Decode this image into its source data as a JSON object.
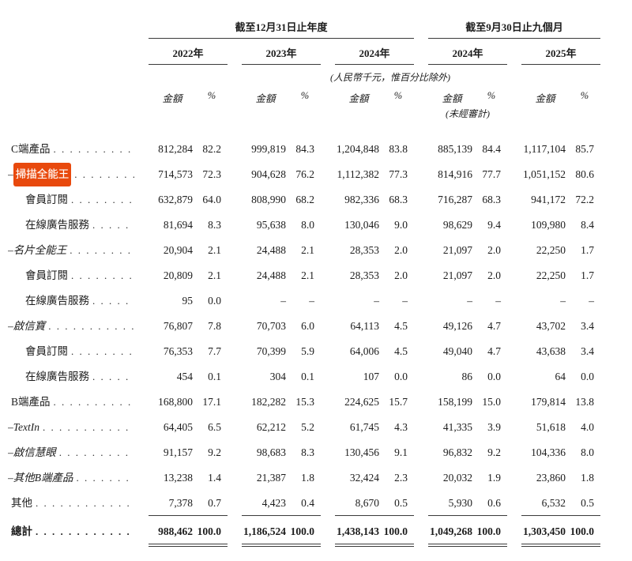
{
  "accent": {
    "highlight_color": "#e8490d"
  },
  "header": {
    "group_annual": "截至12月31日止年度",
    "group_nine_month": "截至9月30日止九個月",
    "years": [
      "2022年",
      "2023年",
      "2024年",
      "2024年",
      "2025年"
    ],
    "unit_note": "(人民幣千元，惟百分比除外)",
    "amount_label": "金額",
    "pct_label": "%",
    "unaudited": "(未經審計)"
  },
  "rows": [
    {
      "prefix": "",
      "label": "C端產品",
      "indent": "ind-0",
      "italic": false,
      "highlight": false,
      "style": "",
      "values": [
        "812,284",
        "82.2",
        "999,819",
        "84.3",
        "1,204,848",
        "83.8",
        "885,139",
        "84.4",
        "1,117,104",
        "85.7"
      ]
    },
    {
      "prefix": "–",
      "label": "掃描全能王",
      "indent": "ind-dash",
      "italic": false,
      "highlight": true,
      "style": "",
      "values": [
        "714,573",
        "72.3",
        "904,628",
        "76.2",
        "1,112,382",
        "77.3",
        "814,916",
        "77.7",
        "1,051,152",
        "80.6"
      ]
    },
    {
      "prefix": "",
      "label": "會員訂閱",
      "indent": "ind-sub",
      "italic": false,
      "highlight": false,
      "style": "",
      "values": [
        "632,879",
        "64.0",
        "808,990",
        "68.2",
        "982,336",
        "68.3",
        "716,287",
        "68.3",
        "941,172",
        "72.2"
      ]
    },
    {
      "prefix": "",
      "label": "在線廣告服務",
      "indent": "ind-sub",
      "italic": false,
      "highlight": false,
      "style": "",
      "values": [
        "81,694",
        "8.3",
        "95,638",
        "8.0",
        "130,046",
        "9.0",
        "98,629",
        "9.4",
        "109,980",
        "8.4"
      ]
    },
    {
      "prefix": "–",
      "label": "名片全能王",
      "indent": "ind-dash",
      "italic": true,
      "highlight": false,
      "style": "",
      "values": [
        "20,904",
        "2.1",
        "24,488",
        "2.1",
        "28,353",
        "2.0",
        "21,097",
        "2.0",
        "22,250",
        "1.7"
      ]
    },
    {
      "prefix": "",
      "label": "會員訂閱",
      "indent": "ind-sub",
      "italic": false,
      "highlight": false,
      "style": "",
      "values": [
        "20,809",
        "2.1",
        "24,488",
        "2.1",
        "28,353",
        "2.0",
        "21,097",
        "2.0",
        "22,250",
        "1.7"
      ]
    },
    {
      "prefix": "",
      "label": "在線廣告服務",
      "indent": "ind-sub",
      "italic": false,
      "highlight": false,
      "style": "",
      "values": [
        "95",
        "0.0",
        "–",
        "–",
        "–",
        "–",
        "–",
        "–",
        "–",
        "–"
      ]
    },
    {
      "prefix": "–",
      "label": "啟信寶",
      "indent": "ind-dash",
      "italic": true,
      "highlight": false,
      "style": "",
      "values": [
        "76,807",
        "7.8",
        "70,703",
        "6.0",
        "64,113",
        "4.5",
        "49,126",
        "4.7",
        "43,702",
        "3.4"
      ]
    },
    {
      "prefix": "",
      "label": "會員訂閱",
      "indent": "ind-sub",
      "italic": false,
      "highlight": false,
      "style": "",
      "values": [
        "76,353",
        "7.7",
        "70,399",
        "5.9",
        "64,006",
        "4.5",
        "49,040",
        "4.7",
        "43,638",
        "3.4"
      ]
    },
    {
      "prefix": "",
      "label": "在線廣告服務",
      "indent": "ind-sub",
      "italic": false,
      "highlight": false,
      "style": "",
      "values": [
        "454",
        "0.1",
        "304",
        "0.1",
        "107",
        "0.0",
        "86",
        "0.0",
        "64",
        "0.0"
      ]
    },
    {
      "prefix": "",
      "label": "B端產品",
      "indent": "ind-0",
      "italic": false,
      "highlight": false,
      "style": "",
      "values": [
        "168,800",
        "17.1",
        "182,282",
        "15.3",
        "224,625",
        "15.7",
        "158,199",
        "15.0",
        "179,814",
        "13.8"
      ]
    },
    {
      "prefix": "–",
      "label": "TextIn",
      "indent": "ind-dash",
      "italic": true,
      "highlight": false,
      "style": "",
      "values": [
        "64,405",
        "6.5",
        "62,212",
        "5.2",
        "61,745",
        "4.3",
        "41,335",
        "3.9",
        "51,618",
        "4.0"
      ]
    },
    {
      "prefix": "–",
      "label": "啟信慧眼",
      "indent": "ind-dash",
      "italic": true,
      "highlight": false,
      "style": "",
      "values": [
        "91,157",
        "9.2",
        "98,683",
        "8.3",
        "130,456",
        "9.1",
        "96,832",
        "9.2",
        "104,336",
        "8.0"
      ]
    },
    {
      "prefix": "–",
      "label": "其他B端產品",
      "indent": "ind-dash",
      "italic": true,
      "highlight": false,
      "style": "",
      "values": [
        "13,238",
        "1.4",
        "21,387",
        "1.8",
        "32,424",
        "2.3",
        "20,032",
        "1.9",
        "23,860",
        "1.8"
      ]
    },
    {
      "prefix": "",
      "label": "其他",
      "indent": "ind-0",
      "italic": false,
      "highlight": false,
      "style": "underline",
      "values": [
        "7,378",
        "0.7",
        "4,423",
        "0.4",
        "8,670",
        "0.5",
        "5,930",
        "0.6",
        "6,532",
        "0.5"
      ]
    },
    {
      "prefix": "",
      "label": "總計",
      "indent": "ind-0",
      "italic": false,
      "highlight": false,
      "style": "total",
      "values": [
        "988,462",
        "100.0",
        "1,186,524",
        "100.0",
        "1,438,143",
        "100.0",
        "1,049,268",
        "100.0",
        "1,303,450",
        "100.0"
      ]
    }
  ]
}
